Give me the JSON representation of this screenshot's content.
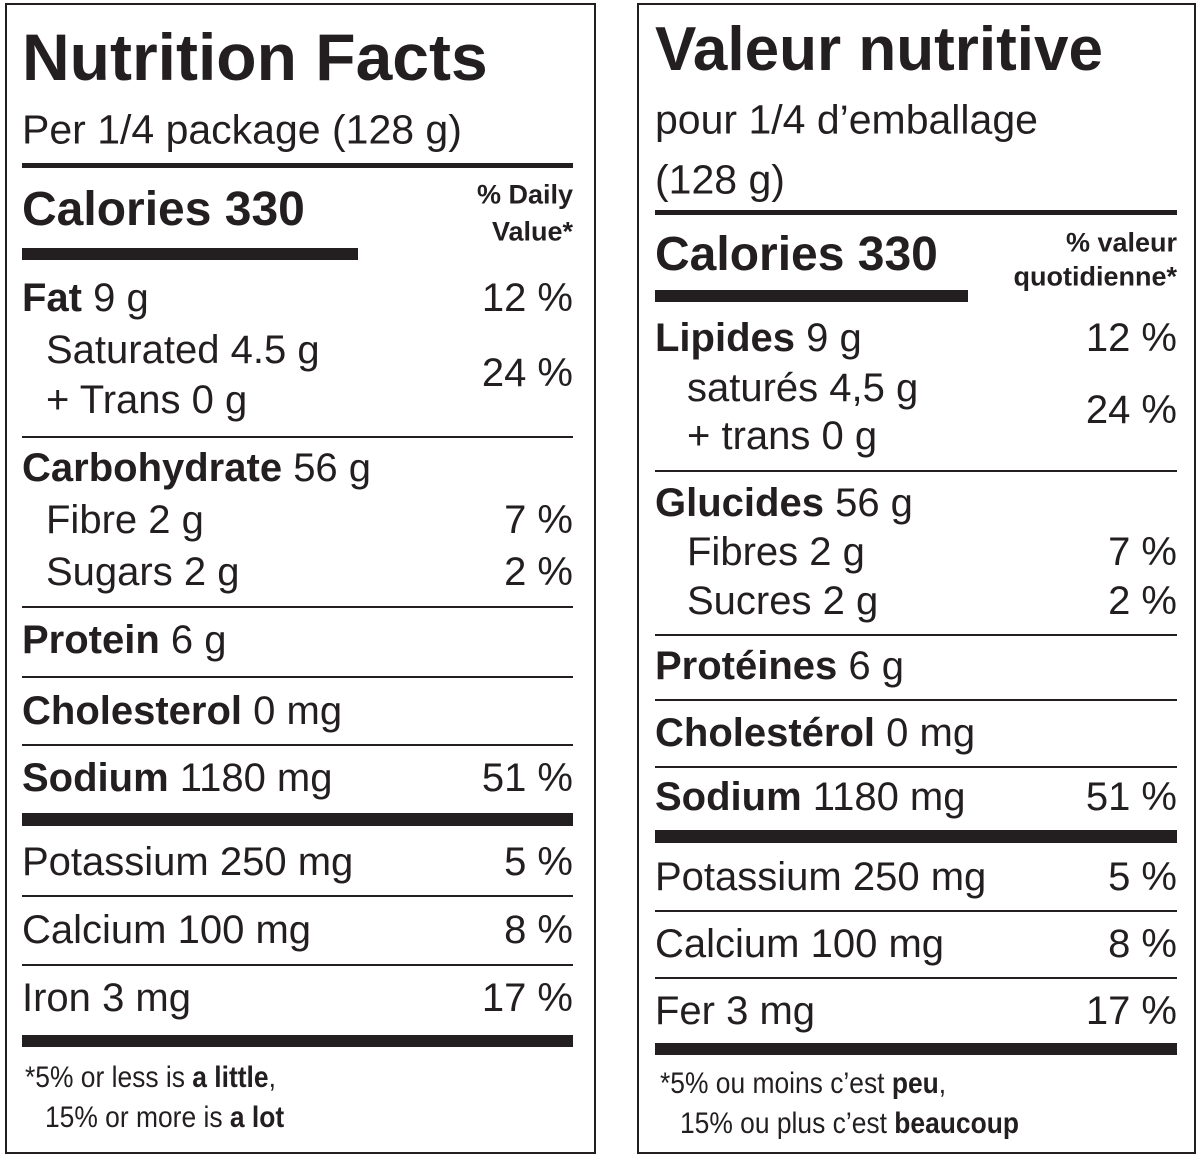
{
  "panels": [
    {
      "title": "Nutrition Facts",
      "serving": [
        "Per 1/4 package (128 g)"
      ],
      "calories": "Calories 330",
      "dv_header": [
        "% Daily",
        "Value*"
      ],
      "rows": [
        {
          "name": "Fat",
          "amount": "9 g",
          "dv": "12 %",
          "bold": true
        },
        {
          "name": "Saturated",
          "amount": "4.5 g",
          "dv": "24 %"
        },
        {
          "name": "+ Trans",
          "amount": "0 g"
        },
        {
          "name": "Carbohydrate",
          "amount": "56 g",
          "bold": true
        },
        {
          "name": "Fibre",
          "amount": "2 g",
          "dv": "7 %"
        },
        {
          "name": "Sugars",
          "amount": "2 g",
          "dv": "2 %"
        },
        {
          "name": "Protein",
          "amount": "6 g",
          "bold": true
        },
        {
          "name": "Cholesterol",
          "amount": "0 mg",
          "bold": true
        },
        {
          "name": "Sodium",
          "amount": "1180 mg",
          "dv": "51 %",
          "bold": true
        },
        {
          "name": "Potassium",
          "amount": "250 mg",
          "dv": "5 %"
        },
        {
          "name": "Calcium",
          "amount": "100 mg",
          "dv": "8 %"
        },
        {
          "name": "Iron",
          "amount": "3 mg",
          "dv": "17 %"
        }
      ],
      "footnote": [
        [
          {
            "text": "*5% or less is "
          },
          {
            "text": "a little",
            "bold": true
          },
          {
            "text": ","
          }
        ],
        [
          {
            "text": "15% or more is "
          },
          {
            "text": "a lot",
            "bold": true
          }
        ]
      ]
    },
    {
      "title": "Valeur nutritive",
      "serving": [
        "pour 1/4 d’emballage",
        "(128 g)"
      ],
      "calories": "Calories 330",
      "dv_header": [
        "% valeur",
        "quotidienne*"
      ],
      "rows": [
        {
          "name": "Lipides",
          "amount": "9 g",
          "dv": "12 %",
          "bold": true
        },
        {
          "name": "saturés",
          "amount": "4,5 g",
          "dv": "24 %"
        },
        {
          "name": "+ trans",
          "amount": "0 g"
        },
        {
          "name": "Glucides",
          "amount": "56 g",
          "bold": true
        },
        {
          "name": "Fibres",
          "amount": "2 g",
          "dv": "7 %"
        },
        {
          "name": "Sucres",
          "amount": "2 g",
          "dv": "2 %"
        },
        {
          "name": "Protéines",
          "amount": "6 g",
          "bold": true
        },
        {
          "name": "Cholestérol",
          "amount": "0 mg",
          "bold": true
        },
        {
          "name": "Sodium",
          "amount": "1180 mg",
          "dv": "51 %",
          "bold": true
        },
        {
          "name": "Potassium",
          "amount": "250 mg",
          "dv": "5 %"
        },
        {
          "name": "Calcium",
          "amount": "100 mg",
          "dv": "8 %"
        },
        {
          "name": "Fer",
          "amount": "3 mg",
          "dv": "17 %"
        }
      ],
      "footnote": [
        [
          {
            "text": "*5% ou moins c’est "
          },
          {
            "text": "peu",
            "bold": true
          },
          {
            "text": ","
          }
        ],
        [
          {
            "text": "15% ou plus c’est "
          },
          {
            "text": "beaucoup",
            "bold": true
          }
        ]
      ]
    }
  ]
}
